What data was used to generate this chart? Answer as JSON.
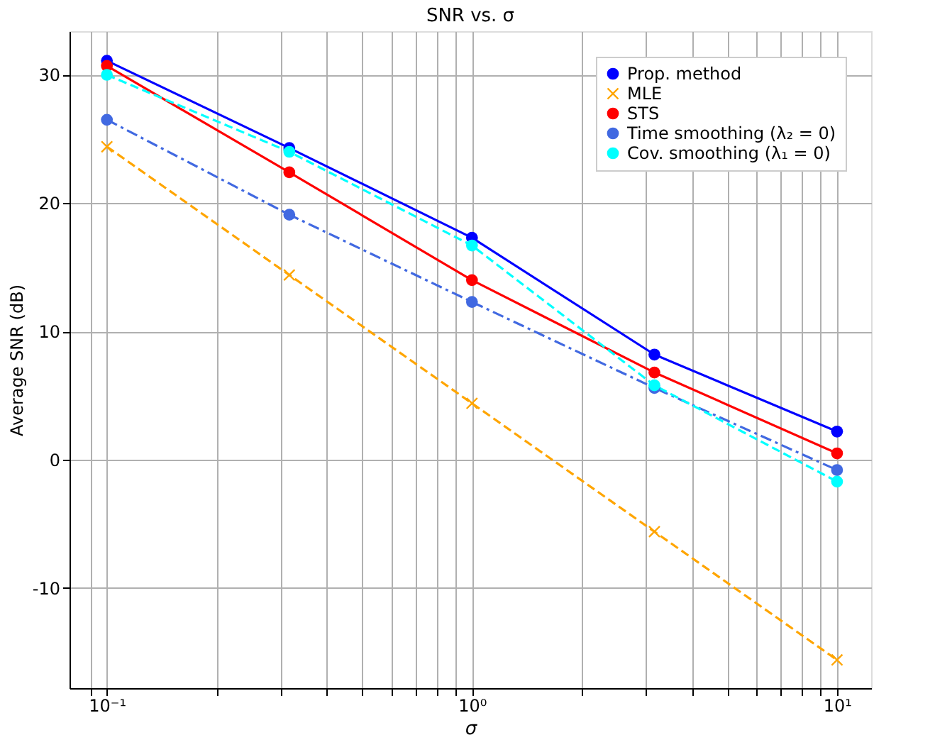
{
  "chart_data": {
    "type": "line",
    "title": "SNR vs. σ",
    "xlabel": "σ",
    "ylabel": "Average SNR (dB)",
    "x": [
      0.1,
      0.316,
      1,
      3.16,
      10
    ],
    "series": [
      {
        "name": "Prop. method",
        "color": "#0000ff",
        "values": [
          31.1,
          24.3,
          17.3,
          8.2,
          2.2
        ],
        "marker": "circle",
        "line_style": "solid"
      },
      {
        "name": "MLE",
        "color": "#ffa500",
        "values": [
          24.4,
          14.4,
          4.4,
          -5.6,
          -15.6
        ],
        "marker": "cross",
        "line_style": "dashed"
      },
      {
        "name": "STS",
        "color": "#ff0000",
        "values": [
          30.7,
          22.4,
          14.0,
          6.8,
          0.5
        ],
        "marker": "circle",
        "line_style": "solid"
      },
      {
        "name": "Time smoothing (λ₂ = 0)",
        "color": "#4169e1",
        "values": [
          26.5,
          19.1,
          12.3,
          5.6,
          -0.8
        ],
        "marker": "circle",
        "line_style": "dashdot"
      },
      {
        "name": "Cov. smoothing (λ₁ = 0)",
        "color": "#00ffff",
        "values": [
          30.0,
          24.0,
          16.7,
          5.8,
          -1.7
        ],
        "marker": "circle",
        "line_style": "dashed"
      }
    ],
    "log": "x",
    "xlim": [
      0.079,
      12.4
    ],
    "ylim": [
      -17.8,
      33.4
    ],
    "xticks": [
      {
        "value": 0.09,
        "label": null
      },
      {
        "value": 0.1,
        "label": "10⁻¹"
      },
      {
        "value": 0.2,
        "label": null
      },
      {
        "value": 0.3,
        "label": null
      },
      {
        "value": 0.4,
        "label": null
      },
      {
        "value": 0.5,
        "label": null
      },
      {
        "value": 0.6,
        "label": null
      },
      {
        "value": 0.7,
        "label": null
      },
      {
        "value": 0.8,
        "label": null
      },
      {
        "value": 0.9,
        "label": null
      },
      {
        "value": 1,
        "label": "10⁰"
      },
      {
        "value": 2,
        "label": null
      },
      {
        "value": 3,
        "label": null
      },
      {
        "value": 4,
        "label": null
      },
      {
        "value": 5,
        "label": null
      },
      {
        "value": 6,
        "label": null
      },
      {
        "value": 7,
        "label": null
      },
      {
        "value": 8,
        "label": null
      },
      {
        "value": 9,
        "label": null
      },
      {
        "value": 10,
        "label": "10¹"
      }
    ],
    "yticks": [
      -10,
      0,
      10,
      20,
      30
    ],
    "grid": true,
    "legend": "top right"
  }
}
